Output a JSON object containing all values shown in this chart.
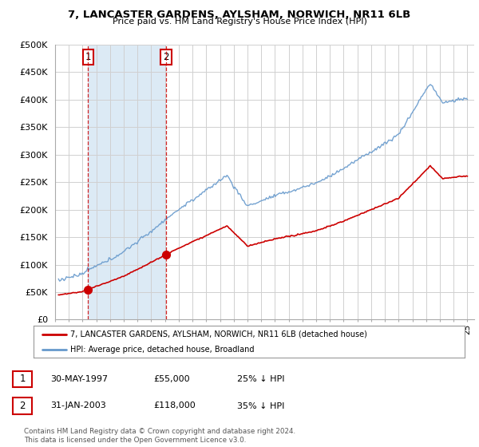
{
  "title": "7, LANCASTER GARDENS, AYLSHAM, NORWICH, NR11 6LB",
  "subtitle": "Price paid vs. HM Land Registry's House Price Index (HPI)",
  "legend_line1": "7, LANCASTER GARDENS, AYLSHAM, NORWICH, NR11 6LB (detached house)",
  "legend_line2": "HPI: Average price, detached house, Broadland",
  "annotation1_date": "30-MAY-1997",
  "annotation1_price": "£55,000",
  "annotation1_hpi": "25% ↓ HPI",
  "annotation2_date": "31-JAN-2003",
  "annotation2_price": "£118,000",
  "annotation2_hpi": "35% ↓ HPI",
  "footnote": "Contains HM Land Registry data © Crown copyright and database right 2024.\nThis data is licensed under the Open Government Licence v3.0.",
  "red_line_color": "#cc0000",
  "blue_line_color": "#6699cc",
  "shade_color": "#dceaf5",
  "plot_bg_color": "#ffffff",
  "grid_color": "#cccccc",
  "ylim": [
    0,
    500000
  ],
  "yticks": [
    0,
    50000,
    100000,
    150000,
    200000,
    250000,
    300000,
    350000,
    400000,
    450000,
    500000
  ],
  "xlim_start": 1995.25,
  "xlim_end": 2025.5,
  "sale1_x": 1997.41,
  "sale1_y": 55000,
  "sale2_x": 2003.08,
  "sale2_y": 118000
}
